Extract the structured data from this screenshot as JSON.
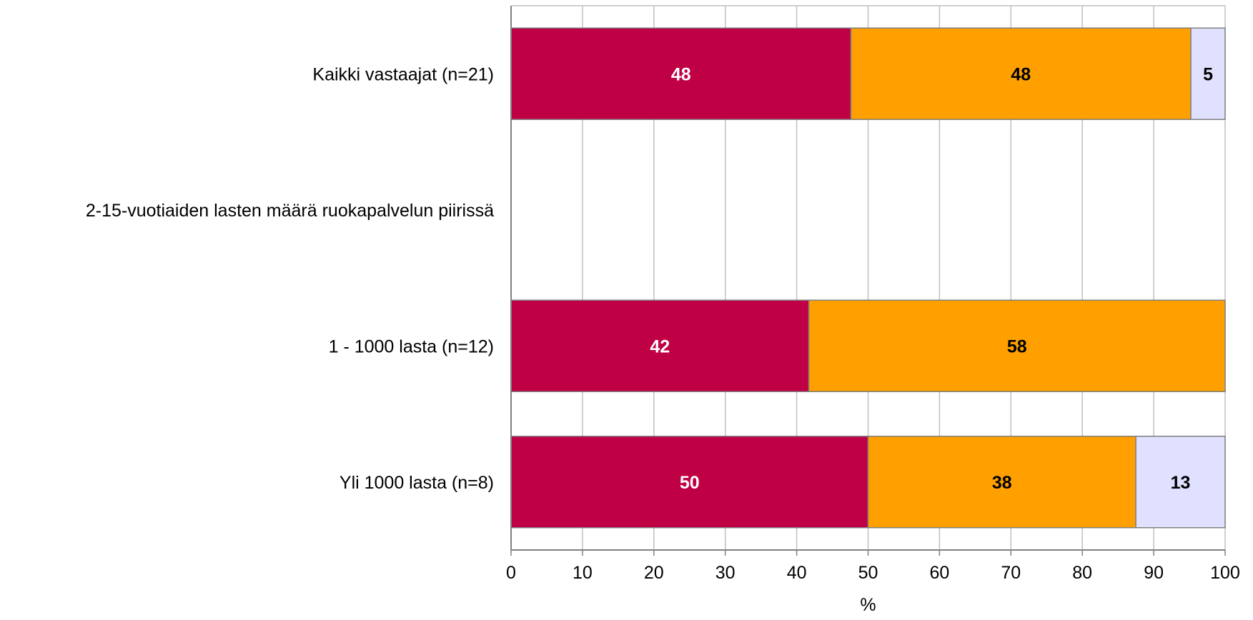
{
  "chart_data": {
    "type": "bar",
    "orientation": "horizontal",
    "stacked": true,
    "categories": [
      "Kaikki vastaajat (n=21)",
      "2-15-vuotiaiden lasten määrä ruokapalvelun piirissä",
      "1 - 1000 lasta (n=12)",
      "Yli 1000 lasta (n=8)"
    ],
    "series": [
      {
        "color": "#c00044",
        "label_color": "#ffffff",
        "values": [
          47.6,
          null,
          41.7,
          50
        ],
        "labels": [
          "48",
          "",
          "42",
          "50"
        ]
      },
      {
        "color": "#ffa000",
        "label_color": "#000000",
        "values": [
          47.6,
          null,
          58.3,
          37.5
        ],
        "labels": [
          "48",
          "",
          "58",
          "38"
        ]
      },
      {
        "color": "#e0e0ff",
        "label_color": "#000000",
        "values": [
          4.8,
          null,
          0,
          12.5
        ],
        "labels": [
          "5",
          "",
          "",
          "13"
        ]
      }
    ],
    "xlabel": "%",
    "xlim": [
      0,
      100
    ],
    "xticks": [
      "0",
      "10",
      "20",
      "30",
      "40",
      "50",
      "60",
      "70",
      "80",
      "90",
      "100"
    ],
    "grid": true,
    "legend": "none"
  }
}
